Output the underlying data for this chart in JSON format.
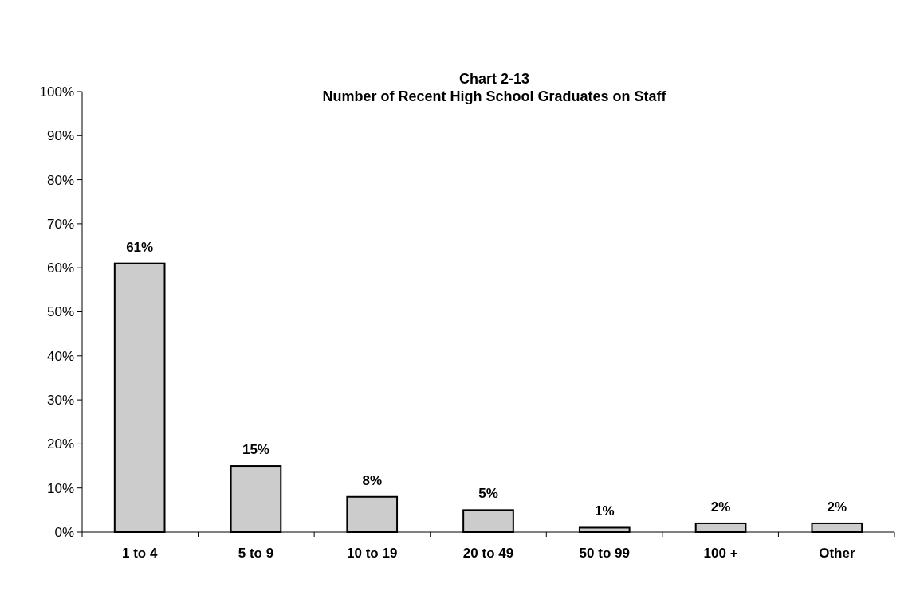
{
  "chart_data": {
    "type": "bar",
    "title": "Chart 2-13\nNumber of Recent High School Graduates on Staff",
    "categories": [
      "1 to 4",
      "5 to 9",
      "10 to 19",
      "20 to 49",
      "50 to 99",
      "100 +",
      "Other"
    ],
    "values": [
      61,
      15,
      8,
      5,
      1,
      2,
      2
    ],
    "color": "#cccccc",
    "value_labels": [
      "61%",
      "15%",
      "8%",
      "5%",
      "1%",
      "2%",
      "2%"
    ],
    "ylim": [
      0,
      100
    ],
    "yticks": [
      {
        "value": 0,
        "label": "0%"
      },
      {
        "value": 10,
        "label": "10%"
      },
      {
        "value": 20,
        "label": "20%"
      },
      {
        "value": 30,
        "label": "30%"
      },
      {
        "value": 40,
        "label": "40%"
      },
      {
        "value": 50,
        "label": "50%"
      },
      {
        "value": 60,
        "label": "60%"
      },
      {
        "value": 70,
        "label": "70%"
      },
      {
        "value": 80,
        "label": "80%"
      },
      {
        "value": 90,
        "label": "90%"
      },
      {
        "value": 100,
        "label": "100%"
      }
    ],
    "grid": false
  }
}
